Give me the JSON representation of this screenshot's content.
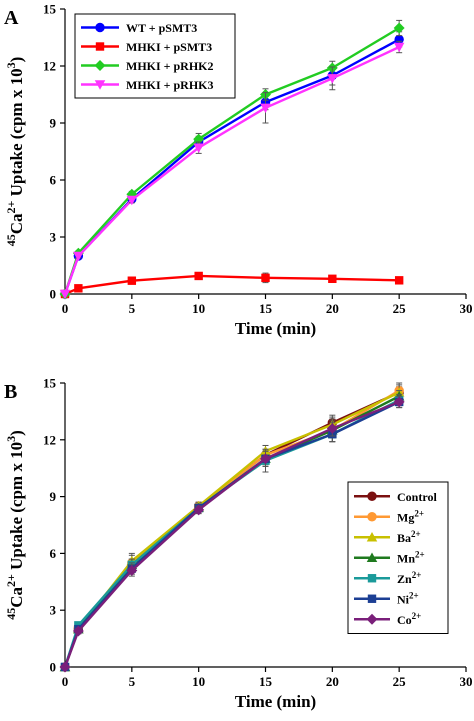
{
  "chart_data": [
    {
      "panel_label": "A",
      "type": "line",
      "xlabel": "Time (min)",
      "ylabel": {
        "prefix": "45",
        "base": "Ca",
        "charge": "2+",
        "rest": " Uptake (cpm x 10",
        "exp": "3",
        "close": ")"
      },
      "xlim": [
        0,
        30
      ],
      "ylim": [
        0,
        15
      ],
      "xticks": [
        "0",
        "5",
        "10",
        "15",
        "20",
        "25",
        "30"
      ],
      "yticks": [
        "0",
        "3",
        "6",
        "9",
        "12",
        "15"
      ],
      "x": [
        0,
        1,
        5,
        10,
        15,
        20,
        25
      ],
      "legend_position": "top-left",
      "series": [
        {
          "name": "WT + pSMT3",
          "color": "#0000ff",
          "marker": "circle",
          "values": [
            0,
            2.0,
            5.0,
            8.0,
            10.1,
            11.5,
            13.4
          ],
          "errors": [
            0,
            0.15,
            0.15,
            0.3,
            0.4,
            0.5,
            0.4
          ]
        },
        {
          "name": "MHKI + pSMT3",
          "color": "#ff0000",
          "marker": "square",
          "values": [
            0,
            0.3,
            0.7,
            0.95,
            0.85,
            0.8,
            0.72
          ],
          "errors": [
            0,
            0.05,
            0.05,
            0.1,
            0.25,
            0.1,
            0.05
          ]
        },
        {
          "name": "MHKI + pRHK2",
          "color": "#22cc22",
          "marker": "diamond",
          "values": [
            0,
            2.15,
            5.25,
            8.15,
            10.5,
            11.9,
            14.0
          ],
          "errors": [
            0,
            0.1,
            0.15,
            0.3,
            0.3,
            0.35,
            0.4
          ]
        },
        {
          "name": "MHKI + pRHK3",
          "color": "#ff33ff",
          "marker": "triangle-down",
          "values": [
            0,
            2.0,
            4.95,
            7.7,
            9.8,
            11.35,
            13.0
          ],
          "errors": [
            0,
            0.1,
            0.15,
            0.3,
            0.8,
            0.6,
            0.3
          ]
        }
      ]
    },
    {
      "panel_label": "B",
      "type": "line",
      "xlabel": "Time (min)",
      "ylabel": {
        "prefix": "45",
        "base": "Ca",
        "charge": "2+",
        "rest": " Uptake (cpm x 10",
        "exp": "3",
        "close": ")"
      },
      "xlim": [
        0,
        30
      ],
      "ylim": [
        0,
        15
      ],
      "xticks": [
        "0",
        "5",
        "10",
        "15",
        "20",
        "25",
        "30"
      ],
      "yticks": [
        "0",
        "3",
        "6",
        "9",
        "12",
        "15"
      ],
      "x": [
        0,
        1,
        5,
        10,
        15,
        20,
        25
      ],
      "legend_position": "bottom-right",
      "series": [
        {
          "name": "Control",
          "label_base": "Control",
          "label_sup": "",
          "color": "#7b1010",
          "marker": "circle",
          "values": [
            0,
            2.0,
            5.3,
            8.5,
            11.2,
            12.9,
            14.5
          ],
          "errors": [
            0,
            0.15,
            0.2,
            0.2,
            0.3,
            0.3,
            0.3
          ]
        },
        {
          "name": "Mg2+",
          "label_base": "Mg",
          "label_sup": "2+",
          "color": "#ff9933",
          "marker": "circle",
          "values": [
            0,
            2.1,
            5.5,
            8.5,
            11.2,
            12.5,
            14.6
          ],
          "errors": [
            0,
            0.15,
            0.4,
            0.2,
            0.5,
            0.6,
            0.4
          ]
        },
        {
          "name": "Ba2+",
          "label_base": "Ba",
          "label_sup": "2+",
          "color": "#c8c000",
          "marker": "triangle-up",
          "values": [
            0,
            2.0,
            5.6,
            8.5,
            11.4,
            12.8,
            14.5
          ],
          "errors": [
            0,
            0.15,
            0.4,
            0.2,
            0.3,
            0.5,
            0.4
          ]
        },
        {
          "name": "Mn2+",
          "label_base": "Mn",
          "label_sup": "2+",
          "color": "#1f7a1f",
          "marker": "triangle-up",
          "values": [
            0,
            2.0,
            5.4,
            8.4,
            11.0,
            12.5,
            14.3
          ],
          "errors": [
            0,
            0.15,
            0.3,
            0.2,
            0.4,
            0.4,
            0.3
          ]
        },
        {
          "name": "Zn2+",
          "label_base": "Zn",
          "label_sup": "2+",
          "color": "#1a9a9a",
          "marker": "square",
          "values": [
            0,
            2.2,
            5.4,
            8.4,
            10.9,
            12.3,
            14.1
          ],
          "errors": [
            0,
            0.15,
            0.3,
            0.2,
            0.6,
            0.4,
            0.3
          ]
        },
        {
          "name": "Ni2+",
          "label_base": "Ni",
          "label_sup": "2+",
          "color": "#1c3f94",
          "marker": "square",
          "values": [
            0,
            2.0,
            5.2,
            8.4,
            11.0,
            12.3,
            14.0
          ],
          "errors": [
            0,
            0.15,
            0.3,
            0.2,
            0.4,
            0.4,
            0.3
          ]
        },
        {
          "name": "Co2+",
          "label_base": "Co",
          "label_sup": "2+",
          "color": "#7a1f7a",
          "marker": "diamond",
          "values": [
            0,
            1.9,
            5.1,
            8.3,
            11.0,
            12.6,
            14.0
          ],
          "errors": [
            0,
            0.15,
            0.3,
            0.2,
            0.4,
            0.4,
            0.3
          ]
        }
      ]
    }
  ]
}
